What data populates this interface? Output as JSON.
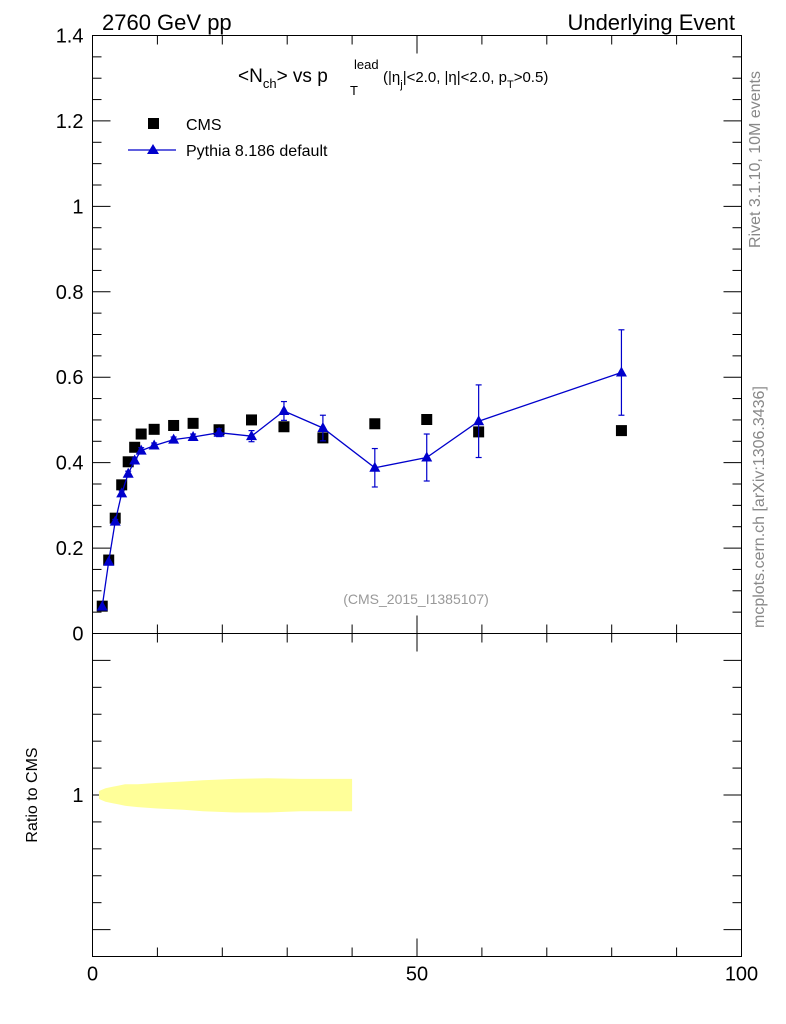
{
  "header": {
    "left": "2760 GeV pp",
    "right": "Underlying Event"
  },
  "side": {
    "rivet": "Rivet 3.1.10,  10M events",
    "mcplots": "mcplots.cern.ch [arXiv:1306.3436]"
  },
  "chart_data": [
    {
      "type": "scatter",
      "title_parts": {
        "a": "<N",
        "a_sub": "ch",
        "b": "> vs p",
        "b_sup": "lead",
        "b_sub": "T",
        "c": "(|η",
        "c_sub": "j",
        "d": "|<2.0, |η|<2.0, p",
        "d_sub": "T",
        "e": ">0.5)"
      },
      "watermark": "(CMS_2015_I1385107)",
      "xlim": [
        0,
        100
      ],
      "ylim": [
        0,
        1.4
      ],
      "yticks": [
        "0",
        "0.2",
        "0.4",
        "0.6",
        "0.8",
        "1",
        "1.2",
        "1.4"
      ],
      "legend_placement": "top-left",
      "series": [
        {
          "name": "CMS",
          "marker": "square",
          "color": "#000000",
          "x": [
            1.5,
            2.5,
            3.5,
            4.5,
            5.5,
            6.5,
            7.5,
            9.5,
            12.5,
            15.5,
            19.5,
            24.5,
            29.5,
            35.5,
            43.5,
            51.5,
            59.5,
            81.5
          ],
          "y": [
            0.064,
            0.172,
            0.27,
            0.348,
            0.402,
            0.436,
            0.467,
            0.478,
            0.487,
            0.492,
            0.477,
            0.5,
            0.484,
            0.458,
            0.491,
            0.501,
            0.472,
            0.475
          ]
        },
        {
          "name": "Pythia 8.186 default",
          "marker": "triangle",
          "color": "#0000cc",
          "x": [
            1.5,
            2.5,
            3.5,
            4.5,
            5.5,
            6.5,
            7.5,
            9.5,
            12.5,
            15.5,
            19.5,
            24.5,
            29.5,
            35.5,
            43.5,
            51.5,
            59.5,
            81.5
          ],
          "y": [
            0.063,
            0.168,
            0.262,
            0.328,
            0.374,
            0.405,
            0.428,
            0.44,
            0.454,
            0.46,
            0.47,
            0.462,
            0.521,
            0.481,
            0.388,
            0.412,
            0.497,
            0.611
          ],
          "err": [
            0.002,
            0.004,
            0.005,
            0.006,
            0.006,
            0.006,
            0.007,
            0.006,
            0.006,
            0.007,
            0.009,
            0.013,
            0.022,
            0.03,
            0.045,
            0.055,
            0.085,
            0.1
          ]
        }
      ]
    },
    {
      "type": "area",
      "ylabel": "Ratio to CMS",
      "xlim": [
        0,
        100
      ],
      "ylim": [
        0.4,
        1.6
      ],
      "yticks": [
        "1"
      ],
      "xticks": [
        "0",
        "50",
        "100"
      ],
      "band": {
        "color": "#ffff99",
        "x": [
          1,
          2,
          3,
          4,
          5,
          7,
          10,
          14,
          17,
          22,
          27,
          32,
          39,
          40
        ],
        "lo": [
          0.985,
          0.975,
          0.97,
          0.965,
          0.96,
          0.955,
          0.95,
          0.945,
          0.94,
          0.935,
          0.935,
          0.94,
          0.94,
          0.94
        ],
        "hi": [
          1.015,
          1.025,
          1.03,
          1.035,
          1.04,
          1.04,
          1.045,
          1.05,
          1.055,
          1.06,
          1.062,
          1.06,
          1.06,
          1.06
        ]
      }
    }
  ]
}
